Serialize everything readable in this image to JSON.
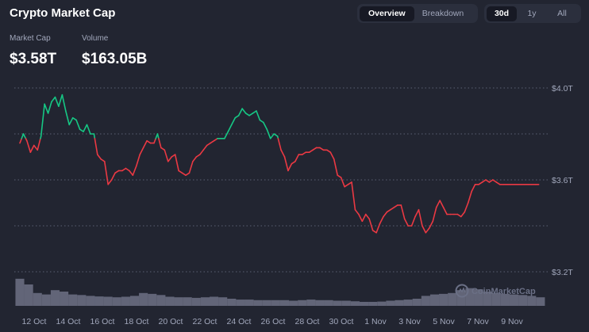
{
  "header": {
    "title": "Crypto Market Cap",
    "view_tabs": [
      "Overview",
      "Breakdown"
    ],
    "active_view": "Overview",
    "range_tabs": [
      "30d",
      "1y",
      "All"
    ],
    "active_range": "30d"
  },
  "stats": {
    "market_cap_label": "Market Cap",
    "market_cap_value": "$3.58T",
    "volume_label": "Volume",
    "volume_value": "$163.05B"
  },
  "watermark": "CoinMarketCap",
  "colors": {
    "background": "#222531",
    "up": "#16c784",
    "down": "#ea3943",
    "volume": "#6d7185",
    "grid": "#5b6072",
    "text_muted": "#a1a7bb"
  },
  "chart_data": {
    "type": "line",
    "title": "",
    "x_tick_labels": [
      "12 Oct",
      "14 Oct",
      "16 Oct",
      "18 Oct",
      "20 Oct",
      "22 Oct",
      "24 Oct",
      "26 Oct",
      "28 Oct",
      "30 Oct",
      "1 Nov",
      "3 Nov",
      "5 Nov",
      "7 Nov",
      "9 Nov"
    ],
    "y_tick_labels": [
      "$4.0T",
      "$3.6T",
      "$3.2T"
    ],
    "y_ticks": [
      4.0,
      3.6,
      3.2
    ],
    "ylim": [
      3.2,
      4.0
    ],
    "baseline": 3.78,
    "grid": true,
    "series": [
      {
        "x": [
          11.0,
          11.2,
          11.4,
          11.6,
          11.8,
          12.0,
          12.2,
          12.4,
          12.6,
          12.8,
          13.0,
          13.2,
          13.4,
          13.6,
          13.8,
          14.0,
          14.2,
          14.4,
          14.6,
          14.8,
          15.0,
          15.2,
          15.4,
          15.6,
          15.8,
          16.0,
          16.2,
          16.4,
          16.6,
          16.8,
          17.0,
          17.2,
          17.4,
          17.6,
          17.8,
          18.0,
          18.2,
          18.4,
          18.6,
          18.8,
          19.0,
          19.2,
          19.4,
          19.6,
          19.8,
          20.0,
          20.2,
          20.4,
          20.6,
          20.8,
          21.0,
          21.2,
          21.4,
          21.6,
          21.8,
          22.0,
          22.2,
          22.4,
          22.6,
          22.8,
          23.0,
          23.2,
          23.4,
          23.6,
          23.8,
          24.0,
          24.2,
          24.4,
          24.6,
          24.8,
          25.0,
          25.2,
          25.4,
          25.6,
          25.8,
          26.0,
          26.2,
          26.4,
          26.6,
          26.8,
          27.0,
          27.2,
          27.4,
          27.6,
          27.8,
          28.0,
          28.2,
          28.4,
          28.6,
          28.8,
          29.0,
          29.2,
          29.4,
          29.6,
          29.8,
          30.0,
          30.2,
          30.4,
          30.6,
          30.8,
          31.0,
          31.2,
          31.4,
          31.6,
          31.8,
          32.0,
          32.2,
          32.4,
          32.6,
          32.8,
          33.0,
          33.2,
          33.4,
          33.6,
          33.8,
          34.0,
          34.2,
          34.4,
          34.6,
          34.8,
          35.0,
          35.2,
          35.4,
          35.6,
          35.8,
          36.0,
          36.2,
          36.4,
          36.6,
          36.8,
          37.0,
          37.2,
          37.4,
          37.6,
          37.8,
          38.0,
          38.2,
          38.4,
          38.6,
          38.8,
          39.0,
          39.2,
          39.4,
          39.6,
          39.8,
          40.0,
          40.2,
          40.4
        ],
        "values": [
          3.76,
          3.8,
          3.77,
          3.72,
          3.75,
          3.73,
          3.79,
          3.93,
          3.89,
          3.94,
          3.96,
          3.92,
          3.97,
          3.9,
          3.84,
          3.87,
          3.86,
          3.82,
          3.81,
          3.84,
          3.8,
          3.8,
          3.71,
          3.69,
          3.68,
          3.58,
          3.6,
          3.63,
          3.64,
          3.64,
          3.65,
          3.64,
          3.62,
          3.66,
          3.71,
          3.74,
          3.77,
          3.76,
          3.76,
          3.8,
          3.74,
          3.73,
          3.68,
          3.7,
          3.71,
          3.64,
          3.63,
          3.62,
          3.63,
          3.68,
          3.7,
          3.71,
          3.73,
          3.75,
          3.76,
          3.77,
          3.78,
          3.78,
          3.78,
          3.81,
          3.84,
          3.87,
          3.88,
          3.91,
          3.89,
          3.88,
          3.89,
          3.9,
          3.86,
          3.85,
          3.82,
          3.78,
          3.8,
          3.79,
          3.73,
          3.7,
          3.64,
          3.67,
          3.68,
          3.71,
          3.71,
          3.72,
          3.72,
          3.73,
          3.74,
          3.74,
          3.73,
          3.73,
          3.72,
          3.69,
          3.62,
          3.61,
          3.57,
          3.58,
          3.59,
          3.47,
          3.45,
          3.42,
          3.45,
          3.43,
          3.38,
          3.37,
          3.41,
          3.44,
          3.46,
          3.47,
          3.48,
          3.49,
          3.49,
          3.43,
          3.4,
          3.4,
          3.44,
          3.47,
          3.4,
          3.37,
          3.39,
          3.42,
          3.48,
          3.51,
          3.48,
          3.45,
          3.45,
          3.45,
          3.45,
          3.44,
          3.46,
          3.5,
          3.55,
          3.58,
          3.58,
          3.59,
          3.6,
          3.59,
          3.6,
          3.59,
          3.58,
          3.58,
          3.58,
          3.58,
          3.58,
          3.58,
          3.58,
          3.58,
          3.58,
          3.58,
          3.58,
          3.58
        ]
      }
    ],
    "volume": {
      "x": [
        11.0,
        11.5,
        12.0,
        12.5,
        13.0,
        13.5,
        14.0,
        14.5,
        15.0,
        15.5,
        16.0,
        16.5,
        17.0,
        17.5,
        18.0,
        18.5,
        19.0,
        19.5,
        20.0,
        20.5,
        21.0,
        21.5,
        22.0,
        22.5,
        23.0,
        23.5,
        24.0,
        24.5,
        25.0,
        25.5,
        26.0,
        26.5,
        27.0,
        27.5,
        28.0,
        28.5,
        29.0,
        29.5,
        30.0,
        30.5,
        31.0,
        31.5,
        32.0,
        32.5,
        33.0,
        33.5,
        34.0,
        34.5,
        35.0,
        35.5,
        36.0,
        36.5,
        37.0,
        37.5,
        38.0,
        38.5,
        39.0,
        39.5,
        40.0,
        40.5
      ],
      "values": [
        0.95,
        0.75,
        0.45,
        0.4,
        0.55,
        0.5,
        0.4,
        0.38,
        0.35,
        0.33,
        0.32,
        0.3,
        0.32,
        0.35,
        0.45,
        0.42,
        0.38,
        0.32,
        0.3,
        0.3,
        0.28,
        0.3,
        0.32,
        0.3,
        0.25,
        0.22,
        0.22,
        0.2,
        0.2,
        0.2,
        0.2,
        0.18,
        0.2,
        0.22,
        0.2,
        0.2,
        0.18,
        0.18,
        0.16,
        0.14,
        0.14,
        0.15,
        0.18,
        0.2,
        0.22,
        0.25,
        0.35,
        0.4,
        0.42,
        0.45,
        0.55,
        0.62,
        0.58,
        0.5,
        0.45,
        0.42,
        0.4,
        0.38,
        0.35,
        0.3
      ]
    }
  }
}
